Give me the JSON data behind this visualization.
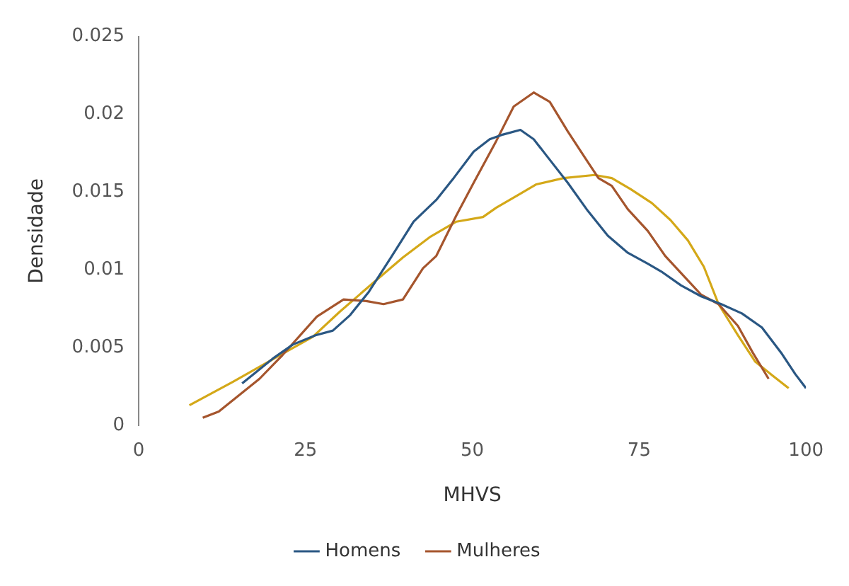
{
  "chart_data": {
    "type": "line",
    "xlabel": "MHVS",
    "ylabel": "Densidade",
    "xlim": [
      0,
      100
    ],
    "xticks": [
      0,
      25,
      50,
      75,
      100
    ],
    "ylim": [
      0,
      0.025
    ],
    "yticks": [
      0,
      0.005,
      0.01,
      0.015,
      0.02,
      0.025
    ],
    "grid": false,
    "legend": "bottom",
    "marker": "none",
    "line_style": "solid",
    "series": [
      {
        "name": "Homens",
        "color": "#2a5783",
        "x": [
          15.5,
          20.1,
          23.1,
          26.5,
          29.1,
          31.7,
          34.5,
          37.8,
          41.2,
          44.6,
          47.2,
          50.2,
          52.6,
          54.6,
          57.2,
          59.2,
          61.2,
          64.3,
          67.3,
          70.3,
          73.3,
          76.3,
          78.3,
          81.3,
          84.3,
          87.3,
          90.4,
          93.4,
          96.4,
          98.4,
          100
        ],
        "values": [
          0.0027,
          0.0043,
          0.0052,
          0.0058,
          0.0061,
          0.0071,
          0.0086,
          0.0108,
          0.0131,
          0.0145,
          0.0159,
          0.0176,
          0.0184,
          0.0187,
          0.019,
          0.0184,
          0.0173,
          0.0156,
          0.0138,
          0.0122,
          0.0111,
          0.0104,
          0.0099,
          0.009,
          0.0083,
          0.0078,
          0.0072,
          0.0063,
          0.0046,
          0.0033,
          0.0024
        ]
      },
      {
        "name": "Mulheres",
        "color": "#a5552d",
        "x": [
          9.6,
          12.0,
          18.1,
          21.5,
          26.7,
          30.7,
          34.1,
          36.7,
          39.6,
          42.6,
          44.6,
          47.6,
          50.2,
          53.6,
          56.2,
          59.2,
          61.6,
          64.3,
          66.9,
          68.9,
          70.9,
          73.3,
          76.3,
          78.9,
          81.7,
          84.3,
          86.9,
          89.8,
          92.0,
          94.4
        ],
        "values": [
          0.0005,
          0.0009,
          0.003,
          0.0045,
          0.007,
          0.0081,
          0.008,
          0.0078,
          0.0081,
          0.0101,
          0.0109,
          0.0135,
          0.0156,
          0.0183,
          0.0205,
          0.0214,
          0.0208,
          0.0189,
          0.0172,
          0.0159,
          0.0154,
          0.0139,
          0.0125,
          0.0109,
          0.0096,
          0.0084,
          0.0078,
          0.0064,
          0.0047,
          0.003
        ]
      },
      {
        "color": "#d4a818",
        "x": [
          7.6,
          14.1,
          20.7,
          26.1,
          30.1,
          35.5,
          39.6,
          43.6,
          47.6,
          51.6,
          53.6,
          56.8,
          59.6,
          63.7,
          68.3,
          70.9,
          73.7,
          76.9,
          79.7,
          82.3,
          84.7,
          86.9,
          89.8,
          92.4,
          95.0,
          97.4
        ],
        "values": [
          0.0013,
          0.0028,
          0.0044,
          0.0057,
          0.0073,
          0.0093,
          0.0108,
          0.0121,
          0.0131,
          0.0134,
          0.014,
          0.0148,
          0.0155,
          0.0159,
          0.0161,
          0.0159,
          0.0152,
          0.0143,
          0.0132,
          0.0119,
          0.0102,
          0.0078,
          0.0058,
          0.0041,
          0.0032,
          0.0024
        ]
      }
    ]
  }
}
